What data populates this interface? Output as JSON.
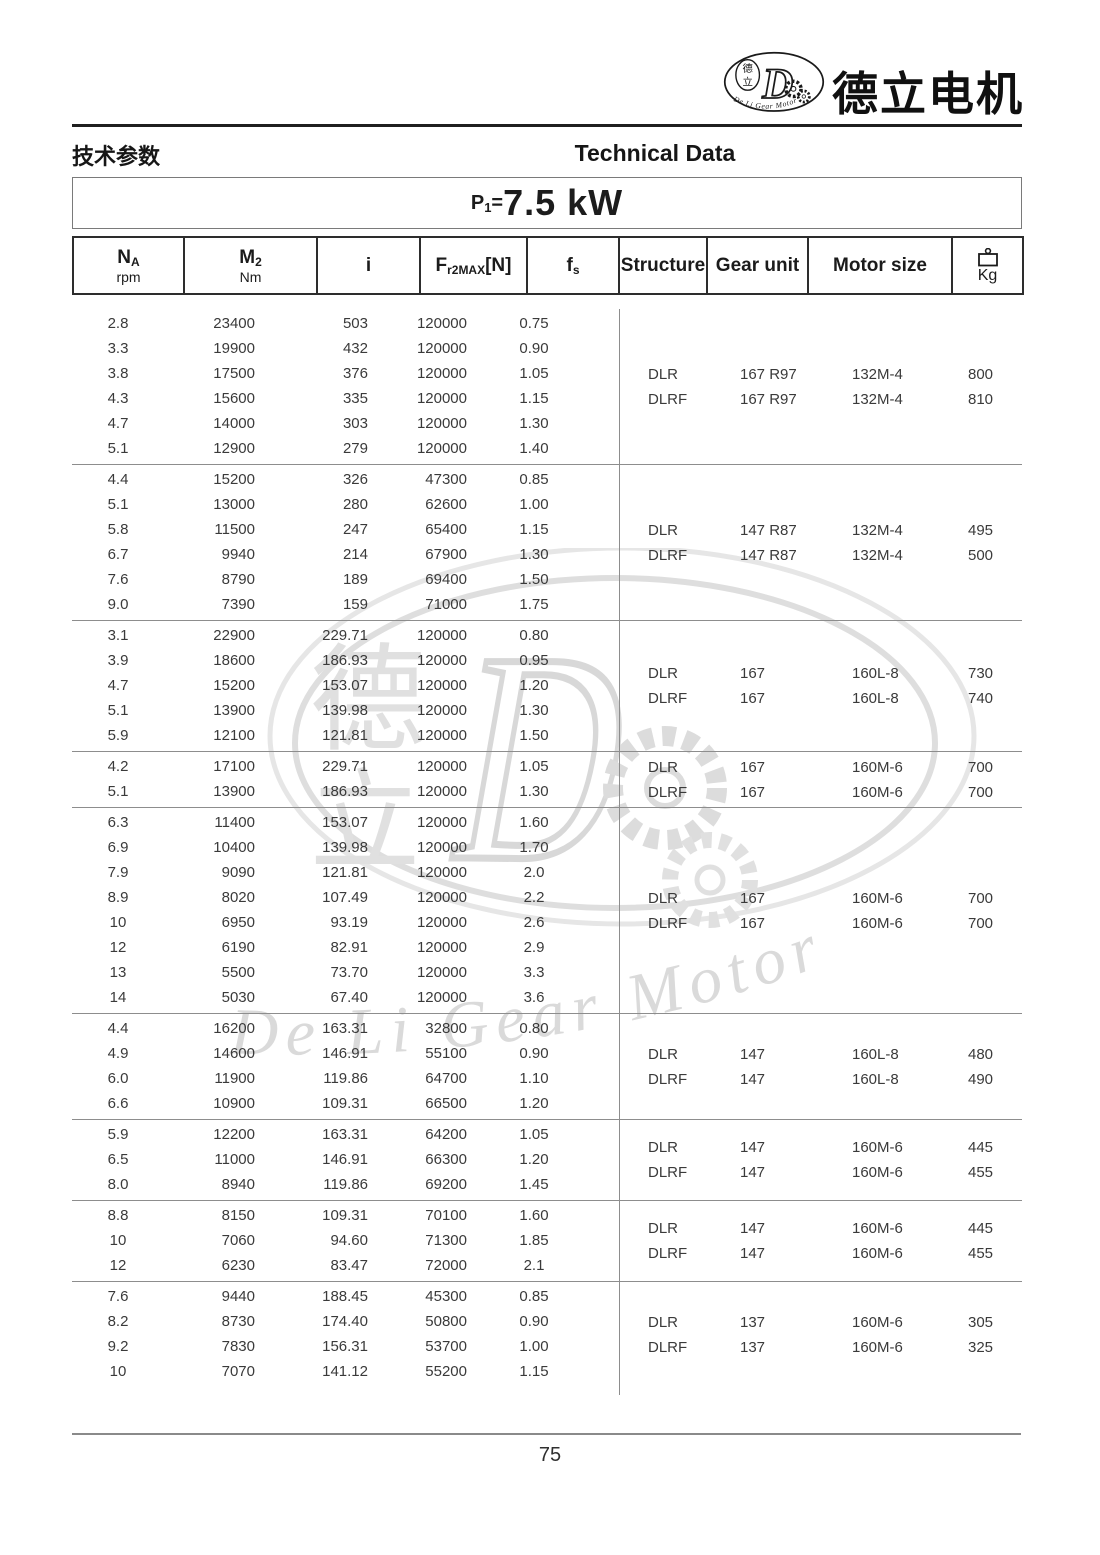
{
  "brand": {
    "name_cn": "德立电机",
    "logo": {
      "letter": "D",
      "small_cn_top": "德",
      "small_cn_bottom": "立",
      "arc_text": "De Li Gear Motor"
    }
  },
  "page": {
    "section_title_cn": "技术参数",
    "section_title_en": "Technical Data",
    "power": {
      "prefix": "P",
      "sub": "1",
      "eq": "=",
      "value": "7.5 kW"
    },
    "page_number": "75"
  },
  "colors": {
    "text": "#1c1c1c",
    "data_text": "#3a3a3a",
    "rule_dark": "#1f1f1f",
    "rule_gray": "#8d8d8d",
    "watermark_gray": "#dedede"
  },
  "table": {
    "headers": {
      "na": {
        "main": "N",
        "sub": "A",
        "unit": "rpm"
      },
      "m2": {
        "main": "M",
        "sub": "2",
        "unit": "Nm"
      },
      "i": {
        "main": "i"
      },
      "fr2max": {
        "main": "F",
        "sub": "r2MAX",
        "bracket": "[N]"
      },
      "fs": {
        "main": "f",
        "sub": "s"
      },
      "structure": "Structure",
      "gear_unit": "Gear unit",
      "motor_size": "Motor size",
      "kg": {
        "icon": "weight-icon",
        "label": "Kg"
      }
    },
    "groups": [
      {
        "rows": [
          [
            "2.8",
            "23400",
            "503",
            "120000",
            "0.75"
          ],
          [
            "3.3",
            "19900",
            "432",
            "120000",
            "0.90"
          ],
          [
            "3.8",
            "17500",
            "376",
            "120000",
            "1.05"
          ],
          [
            "4.3",
            "15600",
            "335",
            "120000",
            "1.15"
          ],
          [
            "4.7",
            "14000",
            "303",
            "120000",
            "1.30"
          ],
          [
            "5.1",
            "12900",
            "279",
            "120000",
            "1.40"
          ]
        ],
        "info": [
          {
            "structure": "DLR",
            "gear_unit": "167 R97",
            "motor_size": "132M-4",
            "kg": "800"
          },
          {
            "structure": "DLRF",
            "gear_unit": "167 R97",
            "motor_size": "132M-4",
            "kg": "810"
          }
        ]
      },
      {
        "rows": [
          [
            "4.4",
            "15200",
            "326",
            "47300",
            "0.85"
          ],
          [
            "5.1",
            "13000",
            "280",
            "62600",
            "1.00"
          ],
          [
            "5.8",
            "11500",
            "247",
            "65400",
            "1.15"
          ],
          [
            "6.7",
            "9940",
            "214",
            "67900",
            "1.30"
          ],
          [
            "7.6",
            "8790",
            "189",
            "69400",
            "1.50"
          ],
          [
            "9.0",
            "7390",
            "159",
            "71000",
            "1.75"
          ]
        ],
        "info": [
          {
            "structure": "DLR",
            "gear_unit": "147 R87",
            "motor_size": "132M-4",
            "kg": "495"
          },
          {
            "structure": "DLRF",
            "gear_unit": "147 R87",
            "motor_size": "132M-4",
            "kg": "500"
          }
        ]
      },
      {
        "rows": [
          [
            "3.1",
            "22900",
            "229.71",
            "120000",
            "0.80"
          ],
          [
            "3.9",
            "18600",
            "186.93",
            "120000",
            "0.95"
          ],
          [
            "4.7",
            "15200",
            "153.07",
            "120000",
            "1.20"
          ],
          [
            "5.1",
            "13900",
            "139.98",
            "120000",
            "1.30"
          ],
          [
            "5.9",
            "12100",
            "121.81",
            "120000",
            "1.50"
          ]
        ],
        "info": [
          {
            "structure": "DLR",
            "gear_unit": "167",
            "motor_size": "160L-8",
            "kg": "730"
          },
          {
            "structure": "DLRF",
            "gear_unit": "167",
            "motor_size": "160L-8",
            "kg": "740"
          }
        ]
      },
      {
        "rows": [
          [
            "4.2",
            "17100",
            "229.71",
            "120000",
            "1.05"
          ],
          [
            "5.1",
            "13900",
            "186.93",
            "120000",
            "1.30"
          ]
        ],
        "info": [
          {
            "structure": "DLR",
            "gear_unit": "167",
            "motor_size": "160M-6",
            "kg": "700"
          },
          {
            "structure": "DLRF",
            "gear_unit": "167",
            "motor_size": "160M-6",
            "kg": "700"
          }
        ]
      },
      {
        "rows": [
          [
            "6.3",
            "11400",
            "153.07",
            "120000",
            "1.60"
          ],
          [
            "6.9",
            "10400",
            "139.98",
            "120000",
            "1.70"
          ],
          [
            "7.9",
            "9090",
            "121.81",
            "120000",
            "2.0"
          ],
          [
            "8.9",
            "8020",
            "107.49",
            "120000",
            "2.2"
          ],
          [
            "10",
            "6950",
            "93.19",
            "120000",
            "2.6"
          ],
          [
            "12",
            "6190",
            "82.91",
            "120000",
            "2.9"
          ],
          [
            "13",
            "5500",
            "73.70",
            "120000",
            "3.3"
          ],
          [
            "14",
            "5030",
            "67.40",
            "120000",
            "3.6"
          ]
        ],
        "info": [
          {
            "structure": "DLR",
            "gear_unit": "167",
            "motor_size": "160M-6",
            "kg": "700"
          },
          {
            "structure": "DLRF",
            "gear_unit": "167",
            "motor_size": "160M-6",
            "kg": "700"
          }
        ]
      },
      {
        "rows": [
          [
            "4.4",
            "16200",
            "163.31",
            "32800",
            "0.80"
          ],
          [
            "4.9",
            "14600",
            "146.91",
            "55100",
            "0.90"
          ],
          [
            "6.0",
            "11900",
            "119.86",
            "64700",
            "1.10"
          ],
          [
            "6.6",
            "10900",
            "109.31",
            "66500",
            "1.20"
          ]
        ],
        "info": [
          {
            "structure": "DLR",
            "gear_unit": "147",
            "motor_size": "160L-8",
            "kg": "480"
          },
          {
            "structure": "DLRF",
            "gear_unit": "147",
            "motor_size": "160L-8",
            "kg": "490"
          }
        ]
      },
      {
        "rows": [
          [
            "5.9",
            "12200",
            "163.31",
            "64200",
            "1.05"
          ],
          [
            "6.5",
            "11000",
            "146.91",
            "66300",
            "1.20"
          ],
          [
            "8.0",
            "8940",
            "119.86",
            "69200",
            "1.45"
          ]
        ],
        "info": [
          {
            "structure": "DLR",
            "gear_unit": "147",
            "motor_size": "160M-6",
            "kg": "445"
          },
          {
            "structure": "DLRF",
            "gear_unit": "147",
            "motor_size": "160M-6",
            "kg": "455"
          }
        ]
      },
      {
        "rows": [
          [
            "8.8",
            "8150",
            "109.31",
            "70100",
            "1.60"
          ],
          [
            "10",
            "7060",
            "94.60",
            "71300",
            "1.85"
          ],
          [
            "12",
            "6230",
            "83.47",
            "72000",
            "2.1"
          ]
        ],
        "info": [
          {
            "structure": "DLR",
            "gear_unit": "147",
            "motor_size": "160M-6",
            "kg": "445"
          },
          {
            "structure": "DLRF",
            "gear_unit": "147",
            "motor_size": "160M-6",
            "kg": "455"
          }
        ]
      },
      {
        "rows": [
          [
            "7.6",
            "9440",
            "188.45",
            "45300",
            "0.85"
          ],
          [
            "8.2",
            "8730",
            "174.40",
            "50800",
            "0.90"
          ],
          [
            "9.2",
            "7830",
            "156.31",
            "53700",
            "1.00"
          ],
          [
            "10",
            "7070",
            "141.12",
            "55200",
            "1.15"
          ]
        ],
        "info": [
          {
            "structure": "DLR",
            "gear_unit": "137",
            "motor_size": "160M-6",
            "kg": "305"
          },
          {
            "structure": "DLRF",
            "gear_unit": "137",
            "motor_size": "160M-6",
            "kg": "325"
          }
        ]
      }
    ]
  }
}
